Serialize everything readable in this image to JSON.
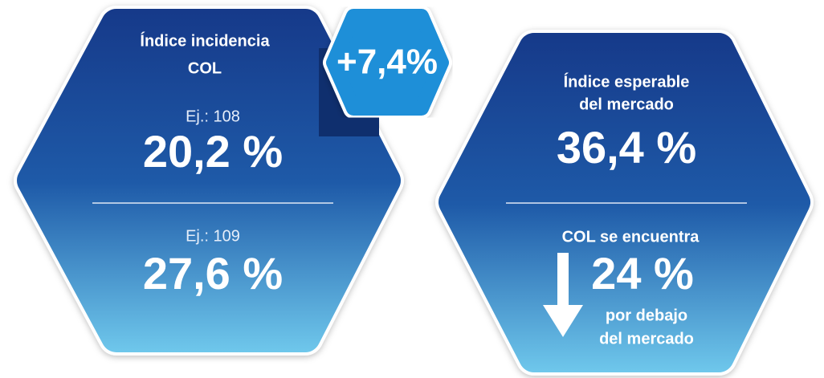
{
  "left": {
    "title": [
      "Índice incidencia",
      "COL"
    ],
    "items": [
      {
        "label": "Ej.: 108",
        "value": "20,2 %"
      },
      {
        "label": "Ej.: 109",
        "value": "27,6 %"
      }
    ]
  },
  "badge": "+7,4%",
  "right": {
    "title": [
      "Índice esperable",
      "del mercado"
    ],
    "value": "36,4 %",
    "note_top": "COL se encuentra",
    "difference": "24 %",
    "note_bottom": [
      "por debajo",
      "del mercado"
    ]
  }
}
